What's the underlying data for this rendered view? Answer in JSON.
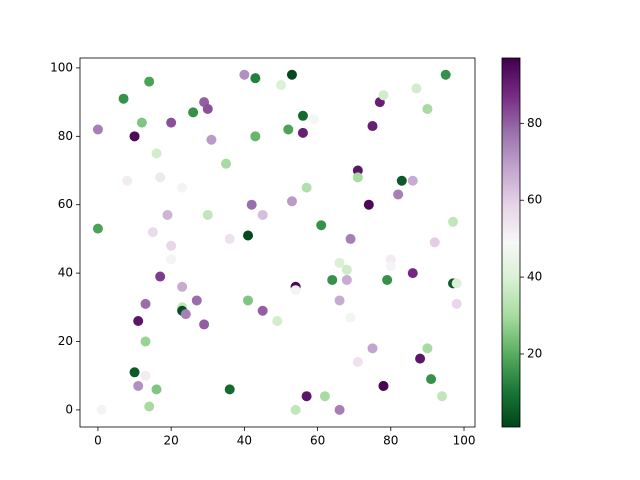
{
  "chart_data": {
    "type": "scatter",
    "x": [
      0,
      0,
      1,
      7,
      8,
      10,
      12,
      14,
      16,
      17,
      23,
      26,
      29,
      30,
      31,
      35,
      20,
      19,
      20,
      20,
      15,
      17,
      13,
      11,
      13,
      10,
      11,
      13,
      16,
      14,
      23,
      23,
      23,
      24,
      27,
      29,
      30,
      36,
      36,
      40,
      43,
      43,
      41,
      42,
      45,
      41,
      45,
      49,
      50,
      53,
      52,
      56,
      56,
      59,
      57,
      53,
      54,
      54,
      61,
      54,
      57,
      62,
      66,
      64,
      66,
      68,
      68,
      66,
      69,
      69,
      71,
      71,
      74,
      75,
      77,
      78,
      75,
      71,
      78,
      79,
      80,
      80,
      82,
      83,
      86,
      86,
      87,
      88,
      90,
      90,
      91,
      92,
      94,
      95,
      97,
      97,
      98,
      98
    ],
    "y": [
      82,
      53,
      0,
      91,
      67,
      80,
      84,
      96,
      75,
      68,
      65,
      87,
      90,
      88,
      79,
      72,
      84,
      57,
      48,
      44,
      52,
      39,
      31,
      26,
      20,
      11,
      7,
      10,
      6,
      1,
      36,
      30,
      29,
      28,
      32,
      25,
      57,
      50,
      6,
      98,
      97,
      80,
      51,
      60,
      57,
      32,
      29,
      26,
      95,
      98,
      82,
      86,
      81,
      85,
      65,
      61,
      36,
      35,
      54,
      0,
      4,
      4,
      0,
      38,
      43,
      41,
      38,
      32,
      50,
      27,
      70,
      68,
      60,
      83,
      90,
      92,
      18,
      14,
      7,
      38,
      44,
      42,
      63,
      67,
      67,
      40,
      94,
      15,
      88,
      18,
      9,
      49,
      4,
      98,
      55,
      37,
      37,
      31
    ],
    "c": [
      75,
      18,
      50,
      15,
      52,
      95,
      25,
      18,
      38,
      53,
      50,
      15,
      80,
      82,
      70,
      30,
      82,
      65,
      58,
      50,
      57,
      85,
      78,
      92,
      28,
      5,
      72,
      52,
      25,
      30,
      67,
      35,
      3,
      75,
      78,
      80,
      35,
      55,
      8,
      72,
      12,
      22,
      2,
      78,
      63,
      25,
      80,
      38,
      40,
      2,
      18,
      8,
      90,
      48,
      32,
      70,
      95,
      50,
      15,
      35,
      92,
      30,
      75,
      15,
      40,
      37,
      67,
      67,
      75,
      47,
      92,
      30,
      95,
      90,
      90,
      38,
      68,
      55,
      96,
      15,
      52,
      50,
      75,
      5,
      67,
      88,
      38,
      92,
      30,
      30,
      15,
      60,
      35,
      15,
      35,
      5,
      40,
      58
    ],
    "xlim": [
      -4.9,
      103
    ],
    "ylim": [
      -5,
      102.9
    ],
    "xticks": [
      0,
      20,
      40,
      60,
      80,
      100
    ],
    "yticks": [
      0,
      20,
      40,
      60,
      80,
      100
    ],
    "clim": [
      1,
      97
    ],
    "cticks": [
      20,
      40,
      60,
      80
    ],
    "colormap": [
      "#00441b",
      "#1b7837",
      "#5aae61",
      "#a6dba0",
      "#d9f0d3",
      "#f7f7f7",
      "#e7d4e8",
      "#c2a5cf",
      "#9970ab",
      "#762a83",
      "#40004b"
    ]
  }
}
